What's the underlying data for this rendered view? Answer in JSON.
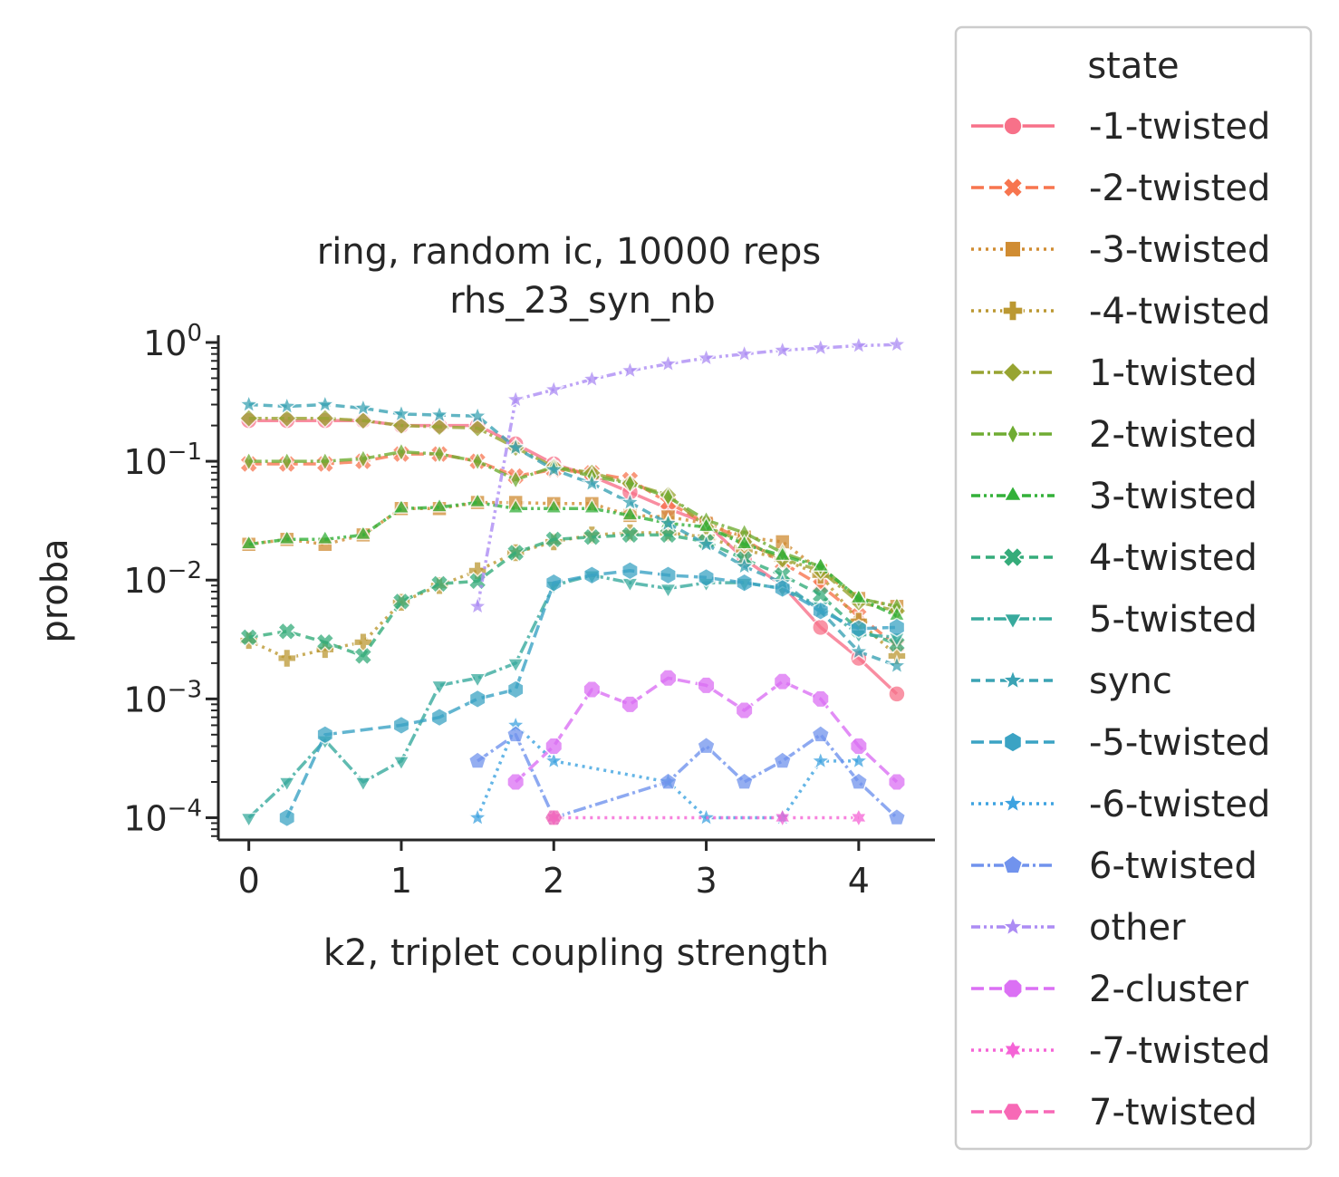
{
  "chart_data": {
    "type": "line",
    "title": "ring, random ic, 10000 reps",
    "subtitle": "rhs_23_syn_nb",
    "xlabel": "k2, triplet coupling strength",
    "ylabel": "proba",
    "yscale": "log",
    "xlim": [
      -0.2,
      4.5
    ],
    "ylim": [
      6.5e-05,
      1.15
    ],
    "xticks": [
      0,
      1,
      2,
      3,
      4
    ],
    "xtick_labels": [
      "0",
      "1",
      "2",
      "3",
      "4"
    ],
    "yticks": [
      0.0001,
      0.001,
      0.01,
      0.1,
      1
    ],
    "ytick_bases": [
      "10",
      "10",
      "10",
      "10",
      "10"
    ],
    "ytick_exponents": [
      "−4",
      "−3",
      "−2",
      "−1",
      "0"
    ],
    "legend": {
      "title": "state",
      "position": "outside-right"
    },
    "series": [
      {
        "name": "-1-twisted",
        "color": "#f77189",
        "marker": "circle",
        "dash": "",
        "x": [
          0,
          0.25,
          0.5,
          0.75,
          1,
          1.25,
          1.5,
          1.75,
          2,
          2.25,
          2.5,
          2.75,
          3,
          3.25,
          3.5,
          3.75,
          4,
          4.25
        ],
        "y": [
          0.22,
          0.22,
          0.22,
          0.22,
          0.2,
          0.2,
          0.2,
          0.14,
          0.095,
          0.075,
          0.055,
          0.04,
          0.03,
          0.015,
          0.009,
          0.004,
          0.0022,
          0.0011
        ]
      },
      {
        "name": "-2-twisted",
        "color": "#f7754f",
        "marker": "x",
        "dash": "14,6",
        "x": [
          0,
          0.25,
          0.5,
          0.75,
          1,
          1.25,
          1.5,
          1.75,
          2,
          2.25,
          2.5,
          2.75,
          3,
          3.25,
          3.5,
          3.75,
          4,
          4.25
        ],
        "y": [
          0.095,
          0.095,
          0.095,
          0.1,
          0.115,
          0.115,
          0.1,
          0.075,
          0.085,
          0.08,
          0.07,
          0.045,
          0.03,
          0.022,
          0.014,
          0.009,
          0.005,
          0.0028
        ]
      },
      {
        "name": "-3-twisted",
        "color": "#d08c32",
        "marker": "square",
        "dash": "3,5",
        "x": [
          0,
          0.25,
          0.5,
          0.75,
          1,
          1.25,
          1.5,
          1.75,
          2,
          2.25,
          2.5,
          2.75,
          3,
          3.25,
          3.5,
          3.75,
          4,
          4.25
        ],
        "y": [
          0.02,
          0.022,
          0.02,
          0.024,
          0.04,
          0.04,
          0.045,
          0.045,
          0.044,
          0.044,
          0.035,
          0.034,
          0.03,
          0.023,
          0.021,
          0.012,
          0.007,
          0.006
        ]
      },
      {
        "name": "-4-twisted",
        "color": "#bb9832",
        "marker": "plus",
        "dash": "3,5",
        "x": [
          0,
          0.25,
          0.5,
          0.75,
          1,
          1.25,
          1.5,
          1.75,
          2,
          2.25,
          2.5,
          2.75,
          3,
          3.25,
          3.5,
          3.75,
          4,
          4.25
        ],
        "y": [
          0.0031,
          0.0022,
          0.0026,
          0.003,
          0.0065,
          0.009,
          0.012,
          0.017,
          0.021,
          0.024,
          0.025,
          0.025,
          0.023,
          0.018,
          0.015,
          0.011,
          0.0045,
          0.0023
        ]
      },
      {
        "name": "1-twisted",
        "color": "#97a431",
        "marker": "diamond",
        "dash": "14,4,3,4",
        "x": [
          0,
          0.25,
          0.5,
          0.75,
          1,
          1.25,
          1.5,
          1.75,
          2,
          2.25,
          2.5,
          2.75,
          3,
          3.25,
          3.5,
          3.75,
          4,
          4.25
        ],
        "y": [
          0.23,
          0.23,
          0.23,
          0.22,
          0.2,
          0.195,
          0.19,
          0.13,
          0.09,
          0.08,
          0.065,
          0.052,
          0.028,
          0.021,
          0.015,
          0.012,
          0.0065,
          0.0055
        ]
      },
      {
        "name": "2-twisted",
        "color": "#6fac32",
        "marker": "thin_diamond",
        "dash": "14,4,3,4",
        "x": [
          0,
          0.25,
          0.5,
          0.75,
          1,
          1.25,
          1.5,
          1.75,
          2,
          2.25,
          2.5,
          2.75,
          3,
          3.25,
          3.5,
          3.75,
          4,
          4.25
        ],
        "y": [
          0.1,
          0.1,
          0.1,
          0.105,
          0.12,
          0.115,
          0.1,
          0.07,
          0.09,
          0.075,
          0.065,
          0.05,
          0.032,
          0.025,
          0.017,
          0.013,
          0.007,
          0.006
        ]
      },
      {
        "name": "3-twisted",
        "color": "#33b039",
        "marker": "triangle_up",
        "dash": "10,4,3,4,3,4",
        "x": [
          0,
          0.25,
          0.5,
          0.75,
          1,
          1.25,
          1.5,
          1.75,
          2,
          2.25,
          2.5,
          2.75,
          3,
          3.25,
          3.5,
          3.75,
          4,
          4.25
        ],
        "y": [
          0.02,
          0.022,
          0.022,
          0.024,
          0.04,
          0.041,
          0.045,
          0.04,
          0.04,
          0.04,
          0.035,
          0.03,
          0.028,
          0.02,
          0.016,
          0.013,
          0.007,
          0.005
        ]
      },
      {
        "name": "4-twisted",
        "color": "#35ac7a",
        "marker": "x",
        "dash": "10,6",
        "x": [
          0,
          0.25,
          0.5,
          0.75,
          1,
          1.25,
          1.5,
          1.75,
          2,
          2.25,
          2.5,
          2.75,
          3,
          3.25,
          3.5,
          3.75,
          4,
          4.25
        ],
        "y": [
          0.0033,
          0.0037,
          0.003,
          0.0023,
          0.0066,
          0.0093,
          0.0098,
          0.017,
          0.022,
          0.023,
          0.024,
          0.024,
          0.021,
          0.015,
          0.011,
          0.0075,
          0.0038,
          0.0029
        ]
      },
      {
        "name": "5-twisted",
        "color": "#38aa9d",
        "marker": "triangle_down",
        "dash": "14,4,3,4",
        "x": [
          0,
          0.25,
          0.5,
          0.75,
          1,
          1.25,
          1.5,
          1.75,
          2,
          2.25,
          2.5,
          2.75,
          3,
          3.25,
          3.5,
          3.75,
          4,
          4.25
        ],
        "y": [
          0.0001,
          0.0002,
          0.00045,
          0.0002,
          0.0003,
          0.0013,
          0.0015,
          0.002,
          0.009,
          0.011,
          0.0095,
          0.0085,
          0.0095,
          0.0095,
          0.0085,
          0.006,
          0.0035,
          0.0033
        ]
      },
      {
        "name": "sync",
        "color": "#3ba3b4",
        "marker": "star",
        "dash": "10,6",
        "x": [
          0,
          0.25,
          0.5,
          0.75,
          1,
          1.25,
          1.5,
          1.75,
          2,
          2.25,
          2.5,
          2.75,
          3,
          3.25,
          3.5,
          3.75,
          4,
          4.25
        ],
        "y": [
          0.3,
          0.29,
          0.3,
          0.28,
          0.25,
          0.245,
          0.24,
          0.13,
          0.085,
          0.065,
          0.045,
          0.03,
          0.02,
          0.013,
          0.0095,
          0.0055,
          0.0025,
          0.0019
        ]
      },
      {
        "name": "-5-twisted",
        "color": "#3ba3c4",
        "marker": "hexagon",
        "dash": "14,6",
        "x": [
          0.25,
          0.5,
          1,
          1.25,
          1.5,
          1.75,
          2,
          2.25,
          2.5,
          2.75,
          3,
          3.25,
          3.5,
          3.75,
          4,
          4.25
        ],
        "y": [
          0.0001,
          0.0005,
          0.0006,
          0.0007,
          0.001,
          0.0012,
          0.0095,
          0.011,
          0.012,
          0.011,
          0.0105,
          0.0095,
          0.0085,
          0.0055,
          0.0039,
          0.004
        ]
      },
      {
        "name": "-6-twisted",
        "color": "#3da2e0",
        "marker": "star",
        "dash": "3,5",
        "x": [
          1.5,
          1.75,
          2,
          2.75,
          3,
          3.5,
          3.75,
          4
        ],
        "y": [
          0.0001,
          0.0006,
          0.0003,
          0.0002,
          0.0001,
          0.0001,
          0.0003,
          0.0003
        ]
      },
      {
        "name": "6-twisted",
        "color": "#7193ed",
        "marker": "pentagon",
        "dash": "14,4,3,4",
        "x": [
          1.5,
          1.75,
          2,
          2.75,
          3,
          3.25,
          3.5,
          3.75,
          4,
          4.25
        ],
        "y": [
          0.0003,
          0.0005,
          0.0001,
          0.0002,
          0.0004,
          0.0002,
          0.0003,
          0.0005,
          0.0002,
          0.0001
        ]
      },
      {
        "name": "other",
        "color": "#ac8cf4",
        "marker": "star",
        "dash": "10,4,3,4,3,4",
        "x": [
          1.5,
          1.75,
          2,
          2.25,
          2.5,
          2.75,
          3,
          3.25,
          3.5,
          3.75,
          4,
          4.25
        ],
        "y": [
          0.006,
          0.33,
          0.4,
          0.49,
          0.58,
          0.66,
          0.74,
          0.8,
          0.86,
          0.9,
          0.94,
          0.96
        ]
      },
      {
        "name": "2-cluster",
        "color": "#db70f4",
        "marker": "octagon",
        "dash": "14,6",
        "x": [
          1.75,
          2,
          2.25,
          2.5,
          2.75,
          3,
          3.25,
          3.5,
          3.75,
          4,
          4.25
        ],
        "y": [
          0.0002,
          0.0004,
          0.0012,
          0.0009,
          0.0015,
          0.0013,
          0.0008,
          0.0014,
          0.001,
          0.0004,
          0.0002
        ]
      },
      {
        "name": "-7-twisted",
        "color": "#f564d6",
        "marker": "star6",
        "dash": "3,5",
        "x": [
          2,
          3.5,
          4
        ],
        "y": [
          0.0001,
          0.0001,
          0.0001
        ]
      },
      {
        "name": "7-twisted",
        "color": "#f769b6",
        "marker": "hexagon2",
        "dash": "14,6",
        "x": [
          2
        ],
        "y": [
          0.0001
        ]
      }
    ]
  }
}
